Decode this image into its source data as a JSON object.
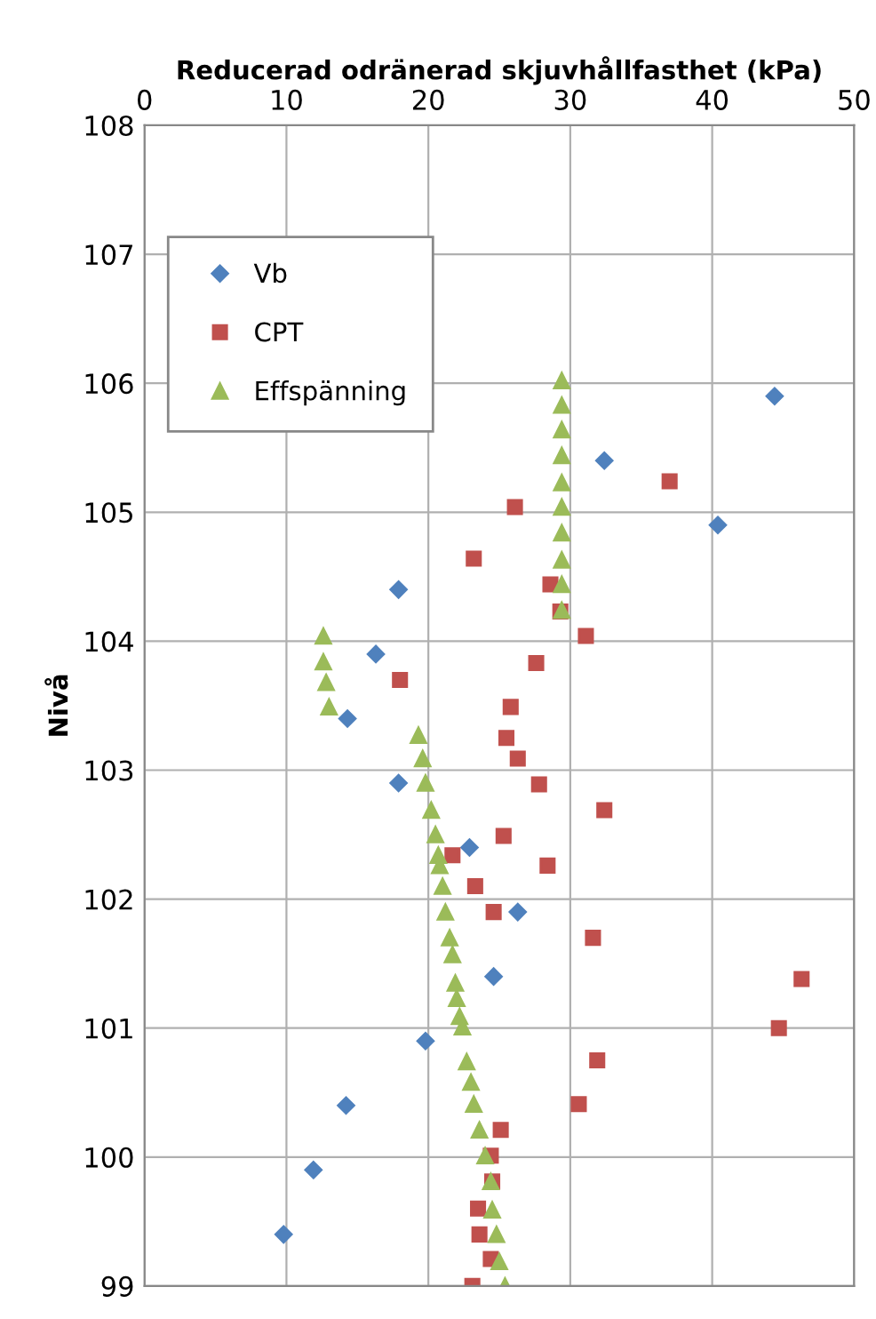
{
  "chart_data": {
    "type": "scatter",
    "xlabel": "Reducerad odränerad skjuvhållfasthet (kPa)",
    "ylabel": "Nivå",
    "xlim": [
      0,
      50
    ],
    "xticks": [
      0,
      10,
      20,
      30,
      40,
      50
    ],
    "ylim": [
      99,
      108
    ],
    "yticks": [
      99,
      100,
      101,
      102,
      103,
      104,
      105,
      106,
      107,
      108
    ],
    "grid": true,
    "legend": "top left",
    "series": [
      {
        "name": "Vb",
        "color": "#4f81bd",
        "marker": "diamond",
        "x": [
          44.4,
          32.4,
          40.4,
          17.9,
          16.3,
          14.3,
          17.9,
          22.9,
          26.3,
          24.6,
          19.8,
          14.2,
          11.9,
          9.8
        ],
        "values": [
          105.9,
          105.4,
          104.9,
          104.4,
          103.9,
          103.4,
          102.9,
          102.4,
          101.9,
          101.4,
          100.9,
          100.4,
          99.9,
          99.4
        ]
      },
      {
        "name": "CPT",
        "color": "#c0504d",
        "marker": "square",
        "x": [
          37.0,
          26.1,
          23.2,
          28.6,
          29.3,
          31.1,
          27.6,
          18.0,
          25.8,
          25.5,
          26.3,
          27.8,
          32.4,
          25.3,
          21.7,
          28.4,
          23.3,
          24.6,
          31.6,
          46.3,
          44.7,
          31.9,
          30.6,
          25.1,
          24.4,
          24.5,
          23.5,
          23.6,
          24.4,
          23.1
        ],
        "values": [
          105.24,
          105.04,
          104.64,
          104.44,
          104.23,
          104.04,
          103.83,
          103.7,
          103.49,
          103.25,
          103.09,
          102.89,
          102.69,
          102.49,
          102.34,
          102.26,
          102.1,
          101.9,
          101.7,
          101.38,
          101.0,
          100.75,
          100.41,
          100.21,
          100.01,
          99.81,
          99.6,
          99.4,
          99.21,
          99.0
        ]
      },
      {
        "name": "Effspänning",
        "color": "#9bbb59",
        "marker": "triangle",
        "x": [
          29.4,
          29.4,
          29.4,
          29.4,
          29.4,
          29.4,
          29.4,
          29.4,
          29.4,
          29.4,
          12.6,
          12.6,
          12.8,
          13.0,
          19.3,
          19.6,
          19.8,
          20.2,
          20.5,
          20.7,
          20.8,
          21.0,
          21.2,
          21.5,
          21.7,
          21.9,
          22.0,
          22.2,
          22.4,
          22.7,
          23.0,
          23.2,
          23.6,
          24.0,
          24.4,
          24.5,
          24.8,
          25.0,
          25.4
        ],
        "values": [
          106.02,
          105.83,
          105.64,
          105.44,
          105.23,
          105.04,
          104.84,
          104.63,
          104.44,
          104.24,
          104.04,
          103.84,
          103.68,
          103.49,
          103.27,
          103.09,
          102.9,
          102.69,
          102.5,
          102.34,
          102.26,
          102.1,
          101.9,
          101.7,
          101.57,
          101.35,
          101.23,
          101.09,
          101.01,
          100.74,
          100.58,
          100.41,
          100.21,
          100.01,
          99.81,
          99.59,
          99.4,
          99.19,
          99.0
        ]
      }
    ]
  }
}
